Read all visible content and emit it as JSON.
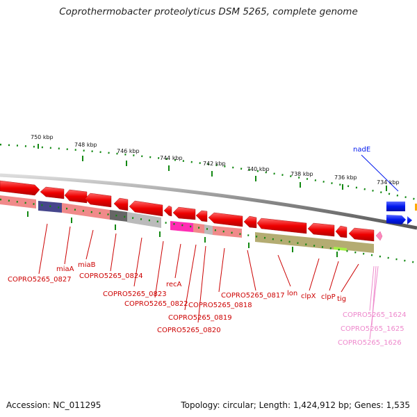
{
  "title": "Coprothermobacter proteolyticus DSM 5265, complete genome",
  "footer": {
    "accession": "Accession: NC_011295",
    "summary": "Topology: circular; Length: 1,424,912 bp; Genes: 1,535"
  },
  "scale_labels": [
    "750 kbp",
    "748 kbp",
    "746 kbp",
    "744 kbp",
    "742 kbp",
    "740 kbp",
    "738 kbp",
    "736 kbp",
    "734 kbp"
  ],
  "gene_labels": {
    "nadE": "nadE",
    "copro0827": "COPRO5265_0827",
    "miaA": "miaA",
    "miaB": "miaB",
    "copro0824": "COPRO5265_0824",
    "copro0823": "COPRO5265_0823",
    "recA": "recA",
    "copro0822": "COPRO5265_0822",
    "copro0818": "COPRO5265_0818",
    "copro0817": "COPRO5265_0817",
    "copro0819": "COPRO5265_0819",
    "copro0820": "COPRO5265_0820",
    "lon": "lon",
    "clpX": "clpX",
    "clpP": "clpP",
    "tig": "tig",
    "copro1624": "COPRO5265_1624",
    "copro1625": "COPRO5265_1625",
    "copro1626": "COPRO5265_1626"
  },
  "colors": {
    "gene_red": "#ee0000",
    "cds_pink": "#f08a8a",
    "rrna_pink": "#ff2eb4",
    "trna_green": "#a6f046",
    "cog_purple": "#46468c",
    "cog_grey": "#666666",
    "cog_light": "#bbbbbb",
    "cog_olive": "#b4ac72",
    "nade_blue": "#0018ee",
    "label_red": "#cc0000",
    "label_pink": "#ee88cc",
    "scale_green": "#118811",
    "backbone": "#888888"
  }
}
